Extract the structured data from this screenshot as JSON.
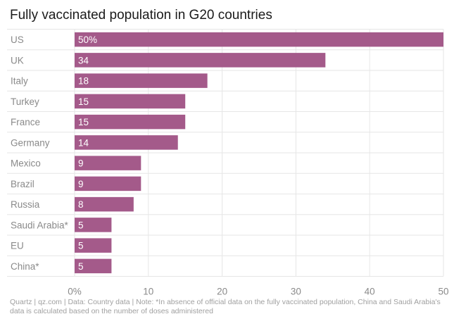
{
  "chart_data": {
    "type": "bar",
    "orientation": "horizontal",
    "title": "Fully vaccinated population in G20 countries",
    "categories": [
      "US",
      "UK",
      "Italy",
      "Turkey",
      "France",
      "Germany",
      "Mexico",
      "Brazil",
      "Russia",
      "Saudi Arabia*",
      "EU",
      "China*"
    ],
    "values": [
      50,
      34,
      18,
      15,
      15,
      14,
      9,
      9,
      8,
      5,
      5,
      5
    ],
    "data_labels": [
      "50%",
      "34",
      "18",
      "15",
      "15",
      "14",
      "9",
      "9",
      "8",
      "5",
      "5",
      "5"
    ],
    "x_ticks": [
      0,
      10,
      20,
      30,
      40,
      50
    ],
    "x_tick_labels": [
      "0%",
      "10",
      "20",
      "30",
      "40",
      "50"
    ],
    "xlim": [
      0,
      50
    ],
    "xlabel": "",
    "ylabel": "",
    "grid": true,
    "bar_color": "#a45a8a",
    "footer": "Quartz | qz.com | Data: Country data | Note: *In absence of official data on the fully vaccinated population, China and Saudi Arabia's data is calculated based on the number of doses administered"
  }
}
